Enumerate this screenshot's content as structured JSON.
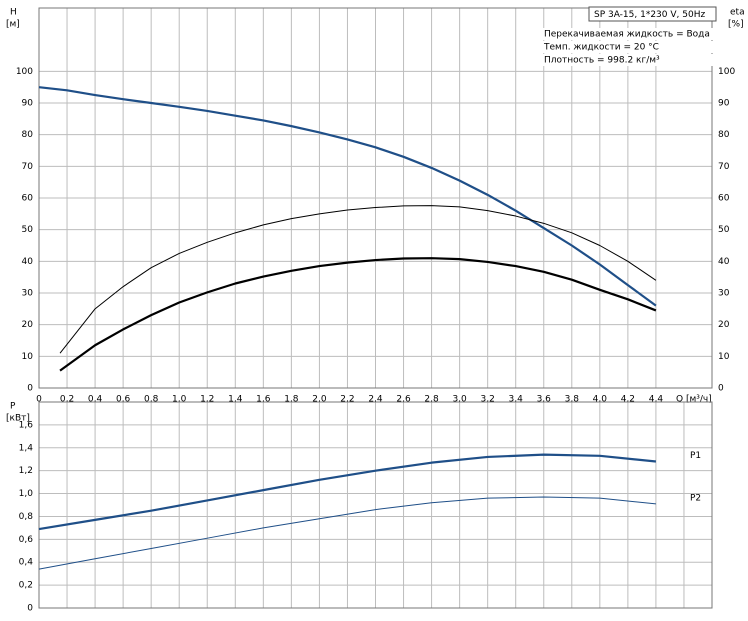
{
  "chart_data": [
    {
      "type": "line",
      "ylabel": "H",
      "yunit": "[м]",
      "y2label": "eta",
      "y2unit": "[%]",
      "xlabel": "Q [м³/ч]",
      "annotation_box": "SP 3A-15, 1*230 V, 50Hz",
      "annotations": [
        "Перекачиваемая жидкость = Вода",
        "Темп. жидкости = 20 °C",
        "Плотность = 998.2 кг/м³"
      ],
      "xlim": [
        0,
        4.8
      ],
      "ylim": [
        0,
        120
      ],
      "y2lim": [
        0,
        120
      ],
      "grid": true,
      "xticks": [
        0,
        {
          "value": 0.2,
          "label": "0,2"
        },
        {
          "value": 0.4,
          "label": "0,4"
        },
        {
          "value": 0.6,
          "label": "0,6"
        },
        {
          "value": 0.8,
          "label": "0,8"
        },
        {
          "value": 1,
          "label": "1,0"
        },
        {
          "value": 1.2,
          "label": "1,2"
        },
        {
          "value": 1.4,
          "label": "1,4"
        },
        {
          "value": 1.6,
          "label": "1,6"
        },
        {
          "value": 1.8,
          "label": "1,8"
        },
        {
          "value": 2,
          "label": "2,0"
        },
        {
          "value": 2.2,
          "label": "2,2"
        },
        {
          "value": 2.4,
          "label": "2,4"
        },
        {
          "value": 2.6,
          "label": "2,6"
        },
        {
          "value": 2.8,
          "label": "2,8"
        },
        {
          "value": 3,
          "label": "3,0"
        },
        {
          "value": 3.2,
          "label": "3,2"
        },
        {
          "value": 3.4,
          "label": "3,4"
        },
        {
          "value": 3.6,
          "label": "3,6"
        },
        {
          "value": 3.8,
          "label": "3,8"
        },
        {
          "value": 4,
          "label": "4,0"
        },
        {
          "value": 4.2,
          "label": "4,2"
        },
        {
          "value": 4.4,
          "label": "4,4"
        }
      ],
      "yticks": [
        0,
        10,
        20,
        30,
        40,
        50,
        60,
        70,
        80,
        90,
        100
      ],
      "y2ticks": [
        0,
        10,
        20,
        30,
        40,
        50,
        60,
        70,
        80,
        90,
        100
      ],
      "series": [
        {
          "color": "#1f4f88",
          "linewidth": 2.2,
          "x": [
            0,
            0.2,
            0.4,
            0.6,
            0.8,
            1.0,
            1.2,
            1.4,
            1.6,
            1.8,
            2.0,
            2.2,
            2.4,
            2.6,
            2.8,
            3.0,
            3.2,
            3.4,
            3.6,
            3.8,
            4.0,
            4.2,
            4.4
          ],
          "values": [
            95,
            94,
            92.5,
            91.2,
            90,
            88.8,
            87.5,
            86,
            84.5,
            82.7,
            80.7,
            78.5,
            76,
            73,
            69.5,
            65.5,
            61,
            56,
            50.5,
            45,
            39,
            32.5,
            26
          ]
        },
        {
          "color": "#000000",
          "linewidth": 1,
          "axis": "y2",
          "x": [
            0.15,
            0.4,
            0.6,
            0.8,
            1.0,
            1.2,
            1.4,
            1.6,
            1.8,
            2.0,
            2.2,
            2.4,
            2.6,
            2.8,
            3.0,
            3.2,
            3.4,
            3.6,
            3.8,
            4.0,
            4.2,
            4.4
          ],
          "values": [
            11,
            25,
            32,
            38,
            42.5,
            46,
            49,
            51.5,
            53.5,
            55,
            56.2,
            57,
            57.5,
            57.6,
            57.2,
            56,
            54.3,
            52,
            49,
            45,
            40,
            34
          ]
        },
        {
          "color": "#000000",
          "linewidth": 2.2,
          "axis": "y2",
          "x": [
            0.15,
            0.4,
            0.6,
            0.8,
            1.0,
            1.2,
            1.4,
            1.6,
            1.8,
            2.0,
            2.2,
            2.4,
            2.6,
            2.8,
            3.0,
            3.2,
            3.4,
            3.6,
            3.8,
            4.0,
            4.2,
            4.4
          ],
          "values": [
            5.5,
            13.5,
            18.5,
            23,
            27,
            30.2,
            33,
            35.2,
            37,
            38.5,
            39.6,
            40.4,
            40.9,
            41,
            40.7,
            39.8,
            38.5,
            36.7,
            34.2,
            31,
            28,
            24.5
          ]
        }
      ]
    },
    {
      "type": "line",
      "ylabel": "P",
      "yunit": "[кВт]",
      "xlim": [
        0,
        4.8
      ],
      "ylim": [
        0,
        1.8
      ],
      "grid": true,
      "xticks": [
        0,
        0.2,
        0.4,
        0.6,
        0.8,
        1,
        1.2,
        1.4,
        1.6,
        1.8,
        2,
        2.2,
        2.4,
        2.6,
        2.8,
        3,
        3.2,
        3.4,
        3.6,
        3.8,
        4,
        4.2,
        4.4,
        4.6
      ],
      "yticks": [
        0,
        {
          "value": 0.2,
          "label": "0,2"
        },
        {
          "value": 0.4,
          "label": "0,4"
        },
        {
          "value": 0.6,
          "label": "0,6"
        },
        {
          "value": 0.8,
          "label": "0,8"
        },
        {
          "value": 1,
          "label": "1,0"
        },
        {
          "value": 1.2,
          "label": "1,2"
        },
        {
          "value": 1.4,
          "label": "1,4"
        },
        {
          "value": 1.6,
          "label": "1,6"
        }
      ],
      "series": [
        {
          "name": "P1",
          "color": "#1f4f88",
          "linewidth": 2.2,
          "x": [
            0,
            0.4,
            0.8,
            1.2,
            1.6,
            2.0,
            2.4,
            2.8,
            3.2,
            3.6,
            4.0,
            4.4
          ],
          "values": [
            0.69,
            0.77,
            0.85,
            0.94,
            1.03,
            1.12,
            1.2,
            1.27,
            1.32,
            1.34,
            1.33,
            1.28
          ]
        },
        {
          "name": "P2",
          "color": "#1f4f88",
          "linewidth": 1,
          "x": [
            0,
            0.4,
            0.8,
            1.2,
            1.6,
            2.0,
            2.4,
            2.8,
            3.2,
            3.6,
            4.0,
            4.4
          ],
          "values": [
            0.34,
            0.43,
            0.52,
            0.61,
            0.7,
            0.78,
            0.86,
            0.92,
            0.96,
            0.97,
            0.96,
            0.91
          ]
        }
      ]
    }
  ]
}
